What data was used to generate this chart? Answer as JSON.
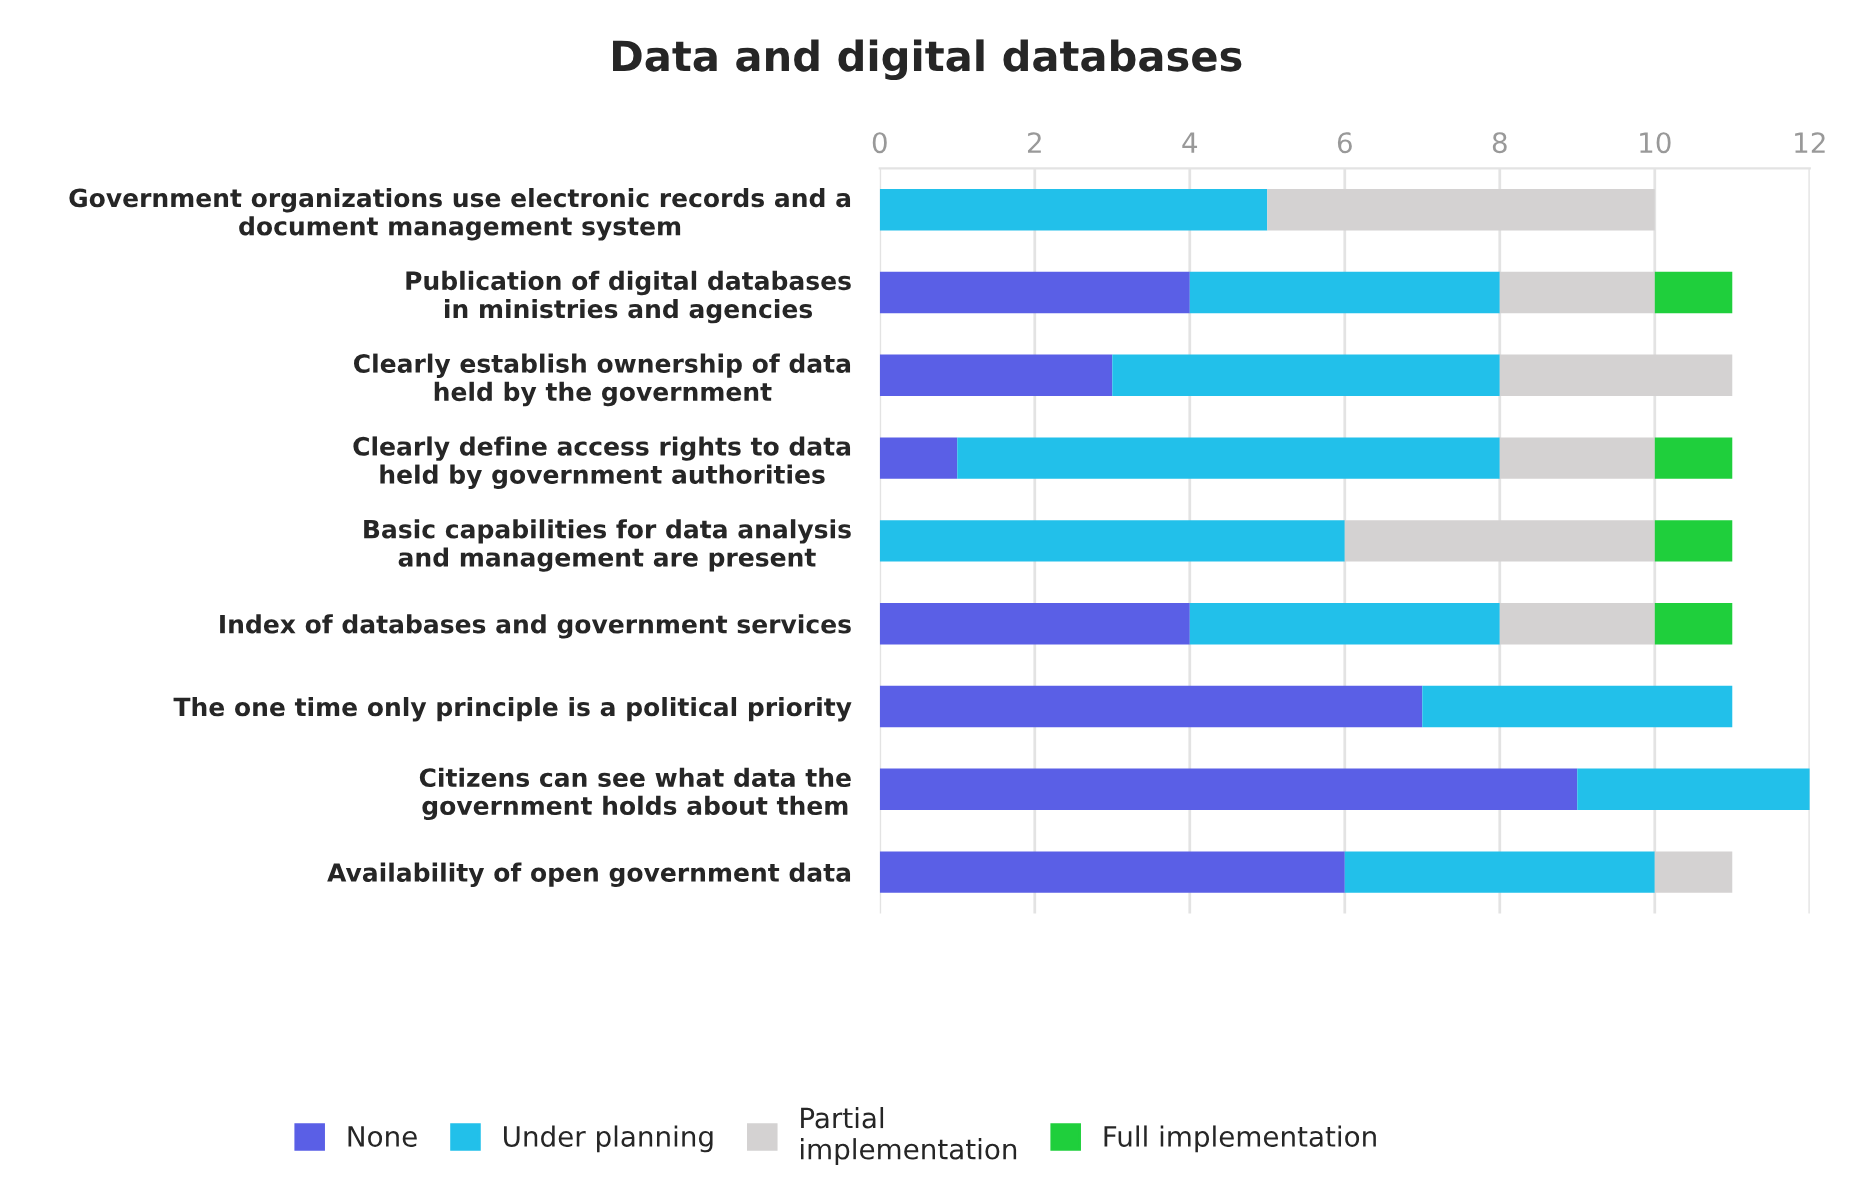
{
  "chart_data": {
    "type": "bar",
    "orientation": "horizontal",
    "stacked": true,
    "title": "Data and digital databases",
    "categories": [
      "Government organizations use electronic records and a\ndocument management system",
      "Publication of digital databases\nin ministries and agencies",
      "Clearly establish ownership of data\nheld by the government",
      "Clearly define access rights to data\nheld by government authorities",
      "Basic capabilities for data analysis\nand management are present",
      "Index of databases and government services",
      "The one time only principle is a political priority",
      "Citizens can see what data the\ngovernment holds about them",
      "Availability of open government data"
    ],
    "series": [
      {
        "name": "None",
        "color": "#5a5fe6",
        "values": [
          0,
          4,
          3,
          1,
          0,
          4,
          7,
          9,
          6
        ]
      },
      {
        "name": "Under planning",
        "color": "#22c0ea",
        "values": [
          5,
          4,
          5,
          7,
          6,
          4,
          4,
          3,
          4
        ]
      },
      {
        "name": "Partial\nimplementation",
        "color": "#d4d2d2",
        "values": [
          5,
          2,
          3,
          2,
          4,
          2,
          0,
          0,
          1
        ]
      },
      {
        "name": "Full implementation",
        "color": "#1fcf3c",
        "values": [
          0,
          1,
          0,
          1,
          1,
          1,
          0,
          0,
          0
        ]
      }
    ],
    "xlim": [
      0,
      12
    ],
    "xticks": [
      0,
      2,
      4,
      6,
      8,
      10,
      12
    ],
    "grid": "x",
    "legend": "bottom"
  }
}
